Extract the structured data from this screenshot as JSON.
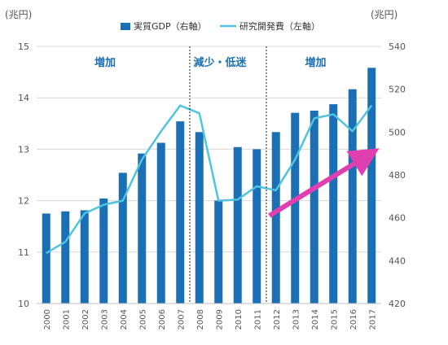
{
  "chart_data": {
    "type": "bar",
    "categories": [
      "2000",
      "2001",
      "2002",
      "2003",
      "2004",
      "2005",
      "2006",
      "2007",
      "2008",
      "2009",
      "2010",
      "2011",
      "2012",
      "2013",
      "2014",
      "2015",
      "2016",
      "2017"
    ],
    "series": [
      {
        "name": "実質GDP（右軸）",
        "type": "bar",
        "axis": "right",
        "color": "#1a6fb5",
        "values": [
          462,
          463,
          463.5,
          469,
          481,
          490,
          495,
          505,
          500,
          468,
          493,
          492,
          500,
          509,
          510,
          513,
          520,
          530
        ]
      },
      {
        "name": "研究開発費（左軸）",
        "type": "line",
        "axis": "left",
        "color": "#4fc3e0",
        "values": [
          10.98,
          11.2,
          11.75,
          11.92,
          12.0,
          12.8,
          13.35,
          13.85,
          13.7,
          12.0,
          12.02,
          12.28,
          12.2,
          12.8,
          13.6,
          13.68,
          13.35,
          13.85
        ]
      }
    ],
    "left_axis": {
      "unit_label": "(兆円)",
      "ylim": [
        10,
        15
      ],
      "ticks": [
        "10",
        "11",
        "12",
        "13",
        "14",
        "15"
      ]
    },
    "right_axis": {
      "unit_label": "(兆円)",
      "ylim": [
        420,
        540
      ],
      "ticks": [
        "420",
        "440",
        "460",
        "480",
        "500",
        "520",
        "540"
      ]
    },
    "phases": [
      {
        "label": "増加",
        "start": "2000",
        "end": "2007"
      },
      {
        "label": "減少・低迷",
        "start": "2008",
        "end": "2011"
      },
      {
        "label": "増加",
        "start": "2012",
        "end": "2017"
      }
    ],
    "trend_arrow": {
      "color": "#e03fb0",
      "from": [
        "2011.9",
        461
      ],
      "to": [
        "2017",
        490
      ]
    },
    "legend_position": "top-center"
  }
}
